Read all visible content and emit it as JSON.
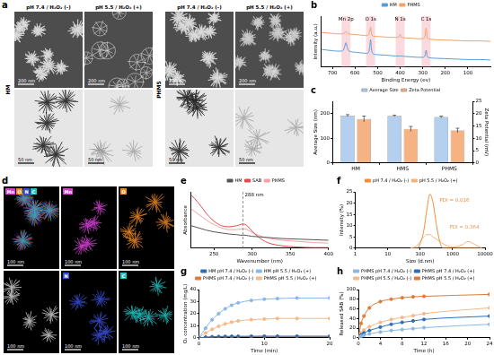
{
  "images": {
    "a": {
      "panel": "a",
      "columns": [
        "pH 7.4 / H₂O₂ (-)",
        "pH 5.5 / H₂O₂ (+)"
      ],
      "rows": [
        "HM",
        "PHMS"
      ],
      "scale_bars": [
        "200 nm",
        "50 nm"
      ]
    },
    "d": {
      "panel": "d",
      "scale_bar": "100 nm",
      "elements": [
        {
          "name": "Mn",
          "color": "#d43fd4"
        },
        {
          "name": "O",
          "color": "#f08a24"
        },
        {
          "name": "N",
          "color": "#3a4fd6"
        },
        {
          "name": "C",
          "color": "#22c4c4"
        }
      ]
    }
  },
  "chart_data": [
    {
      "panel": "b",
      "type": "line",
      "x_label": "Binding Energy (ev)",
      "y_label": "Intensity (a.u.)",
      "x": [
        750,
        720,
        700,
        680,
        660,
        650,
        645,
        640,
        635,
        630,
        610,
        590,
        570,
        550,
        540,
        535,
        531,
        527,
        520,
        500,
        470,
        440,
        420,
        405,
        400,
        395,
        380,
        350,
        320,
        300,
        290,
        285,
        280,
        270,
        250,
        200,
        150,
        100,
        50,
        0
      ],
      "series": [
        {
          "name": "HM",
          "color": "#5b9bd5",
          "values": [
            40,
            38,
            37,
            36,
            36,
            40,
            48,
            55,
            45,
            38,
            34,
            33,
            32,
            31,
            33,
            45,
            62,
            40,
            30,
            28,
            27,
            26,
            25,
            25,
            25,
            25,
            24,
            23,
            22,
            22,
            26,
            38,
            24,
            21,
            20,
            19,
            18,
            17,
            17,
            16
          ]
        },
        {
          "name": "PHMS",
          "color": "#f4a261",
          "values": [
            78,
            77,
            76,
            75,
            75,
            76,
            78,
            80,
            77,
            75,
            74,
            73,
            72,
            71,
            73,
            80,
            90,
            76,
            70,
            69,
            68,
            67,
            67,
            69,
            74,
            68,
            66,
            65,
            64,
            64,
            70,
            88,
            66,
            63,
            62,
            61,
            60,
            59,
            59,
            58
          ]
        }
      ],
      "xlim": [
        750,
        0
      ],
      "xticks": [
        700,
        600,
        500,
        400,
        300,
        200,
        100
      ],
      "ylim": [
        0,
        115
      ],
      "tick_labels": "x",
      "grid": false,
      "legend": "top",
      "annotations": [
        {
          "x": 640,
          "text": "Mn 2p"
        },
        {
          "x": 531,
          "text": "O 1s"
        },
        {
          "x": 400,
          "text": "N 1s"
        },
        {
          "x": 285,
          "text": "C 1s"
        }
      ]
    },
    {
      "panel": "c",
      "type": "bar",
      "categories": [
        "HM",
        "HMS",
        "PHMS"
      ],
      "y_label": "Average Size (nm)",
      "y2_label": "Zeta Potential (mV)",
      "series": [
        {
          "name": "Average Size",
          "color": "#b4d0ee",
          "values": [
            192,
            191,
            186
          ],
          "errors": [
            4,
            3,
            4
          ]
        },
        {
          "name": "Zeta Potential",
          "color": "#f5b383",
          "axis": "y2",
          "values": [
            17.8,
            13.8,
            13.2
          ],
          "errors": [
            1.2,
            1,
            0.9
          ]
        }
      ],
      "ylim": [
        0,
        250
      ],
      "yticks": [
        0,
        100,
        200
      ],
      "y2lim": [
        0,
        25
      ],
      "y2ticks": [
        0,
        5,
        10,
        15,
        20,
        25
      ],
      "grid": false,
      "legend": "top"
    },
    {
      "panel": "e",
      "type": "line",
      "x_label": "Wavenumber (nm)",
      "y_label": "Absorbance",
      "x": [
        220,
        230,
        240,
        250,
        260,
        270,
        280,
        285,
        288,
        291,
        295,
        300,
        310,
        320,
        340,
        360,
        380,
        400
      ],
      "series": [
        {
          "name": "HM",
          "color": "#555555",
          "values": [
            40,
            36,
            32,
            29,
            27,
            25,
            24,
            23,
            23,
            23,
            22,
            21,
            20,
            19,
            17,
            16,
            15,
            14
          ]
        },
        {
          "name": "SAB",
          "color": "#e8474a",
          "values": [
            95,
            80,
            62,
            48,
            40,
            38,
            40,
            42,
            43,
            42,
            38,
            30,
            18,
            10,
            4,
            2,
            1,
            1
          ]
        },
        {
          "name": "PHMS",
          "color": "#f4a0a0",
          "values": [
            70,
            60,
            50,
            42,
            36,
            33,
            33,
            34,
            34,
            34,
            32,
            28,
            22,
            18,
            14,
            12,
            10,
            9
          ]
        }
      ],
      "xlim": [
        220,
        400
      ],
      "xticks": [
        250,
        300,
        350,
        400
      ],
      "ylim": [
        0,
        100
      ],
      "tick_labels": "x",
      "grid": false,
      "legend": "top",
      "annotations": [
        {
          "x": 288,
          "text": "288 nm",
          "line_style": "dashed"
        }
      ]
    },
    {
      "panel": "f",
      "type": "line",
      "x_label": "Size (d.nm)",
      "y_label": "Intensity (%)",
      "log": "x",
      "x": [
        50,
        80,
        100,
        130,
        160,
        200,
        250,
        320,
        400,
        500,
        700,
        1000,
        2000,
        3000,
        5000,
        8000
      ],
      "series": [
        {
          "name": "pH 7.4 / H₂O₂ (-)",
          "color": "#f08c3c",
          "values": [
            0,
            0,
            2,
            8,
            17,
            24,
            20,
            10,
            3,
            0,
            0,
            0,
            0,
            0,
            0,
            0
          ]
        },
        {
          "name": "pH 5.5 / H₂O₂ (+)",
          "color": "#f2b27a",
          "values": [
            0,
            1,
            3,
            5,
            6,
            6,
            5,
            4,
            3,
            2,
            1,
            0.5,
            1.5,
            3,
            1.5,
            0
          ]
        }
      ],
      "xlim": [
        1,
        10000
      ],
      "xticks": [
        1,
        10,
        100,
        1000,
        10000
      ],
      "ylim": [
        0,
        25
      ],
      "yticks": [
        0,
        5,
        10,
        15,
        20,
        25
      ],
      "grid": false,
      "legend": "top",
      "annotations": [
        {
          "x": 400,
          "y": 20,
          "text": "PDI = 0.016",
          "color": "#f08c3c"
        },
        {
          "x": 800,
          "y": 8,
          "text": "PDI = 0.364",
          "color": "#e59a55"
        }
      ]
    },
    {
      "panel": "g",
      "type": "line",
      "x_label": "Time (min)",
      "y_label": "O₂ concentration (mg/L)",
      "marker": "circle",
      "x": [
        0,
        1,
        2,
        3,
        4,
        5,
        6,
        8,
        10,
        12,
        15,
        20
      ],
      "series": [
        {
          "name": "HM pH 7.4 / H₂O₂ (-)",
          "color": "#2f6db5",
          "values": [
            0,
            0.5,
            0.8,
            1,
            1.1,
            1.2,
            1.2,
            1.3,
            1.3,
            1.3,
            1.3,
            1.3
          ]
        },
        {
          "name": "HM pH 5.5 / H₂O₂ (+)",
          "color": "#8ab8e6",
          "values": [
            0,
            8,
            15,
            20,
            24,
            27,
            29,
            31,
            32,
            32.5,
            33,
            33
          ]
        },
        {
          "name": "PHMS pH 7.4 / H₂O₂ (-)",
          "color": "#e07b39",
          "values": [
            0,
            0.3,
            0.5,
            0.7,
            0.8,
            0.9,
            1,
            1,
            1.1,
            1.1,
            1.1,
            1.1
          ]
        },
        {
          "name": "PHMS pH 5.5 / H₂O₂ (+)",
          "color": "#f5b98a",
          "values": [
            0,
            4,
            7,
            9.5,
            11.5,
            13,
            14,
            15,
            15.5,
            16,
            16,
            16
          ]
        }
      ],
      "xlim": [
        0,
        20
      ],
      "xticks": [
        0,
        10,
        20
      ],
      "ylim": [
        0,
        40
      ],
      "yticks": [
        0,
        10,
        20,
        30,
        40
      ],
      "grid": false,
      "legend": "top"
    },
    {
      "panel": "h",
      "type": "line",
      "x_label": "Time (h)",
      "y_label": "Released SAB (%)",
      "marker": "circle",
      "x": [
        0,
        0.5,
        1,
        2,
        4,
        6,
        8,
        10,
        12,
        24
      ],
      "series": [
        {
          "name": "PHMS pH 7.4 / H₂O₂ (-)",
          "color": "#8ab8e6",
          "values": [
            0,
            3,
            5,
            8,
            12,
            15,
            17,
            19,
            21,
            28
          ]
        },
        {
          "name": "PHMS pH 7.4 / H₂O₂ (+)",
          "color": "#2f6db5",
          "values": [
            0,
            6,
            10,
            15,
            22,
            28,
            32,
            35,
            38,
            45
          ]
        },
        {
          "name": "PHMS pH 5.5 / H₂O₂ (-)",
          "color": "#f5b98a",
          "values": [
            0,
            10,
            16,
            23,
            32,
            38,
            42,
            46,
            50,
            62
          ]
        },
        {
          "name": "PHMS pH 5.5 / H₂O₂ (+)",
          "color": "#e07b39",
          "values": [
            0,
            30,
            45,
            62,
            75,
            80,
            83,
            85,
            86,
            90
          ]
        }
      ],
      "xlim": [
        0,
        24
      ],
      "xticks": [
        0,
        4,
        8,
        12,
        16,
        20,
        24
      ],
      "ylim": [
        0,
        100
      ],
      "yticks": [
        0,
        20,
        40,
        60,
        80,
        100
      ],
      "grid": false,
      "legend": "top"
    }
  ]
}
